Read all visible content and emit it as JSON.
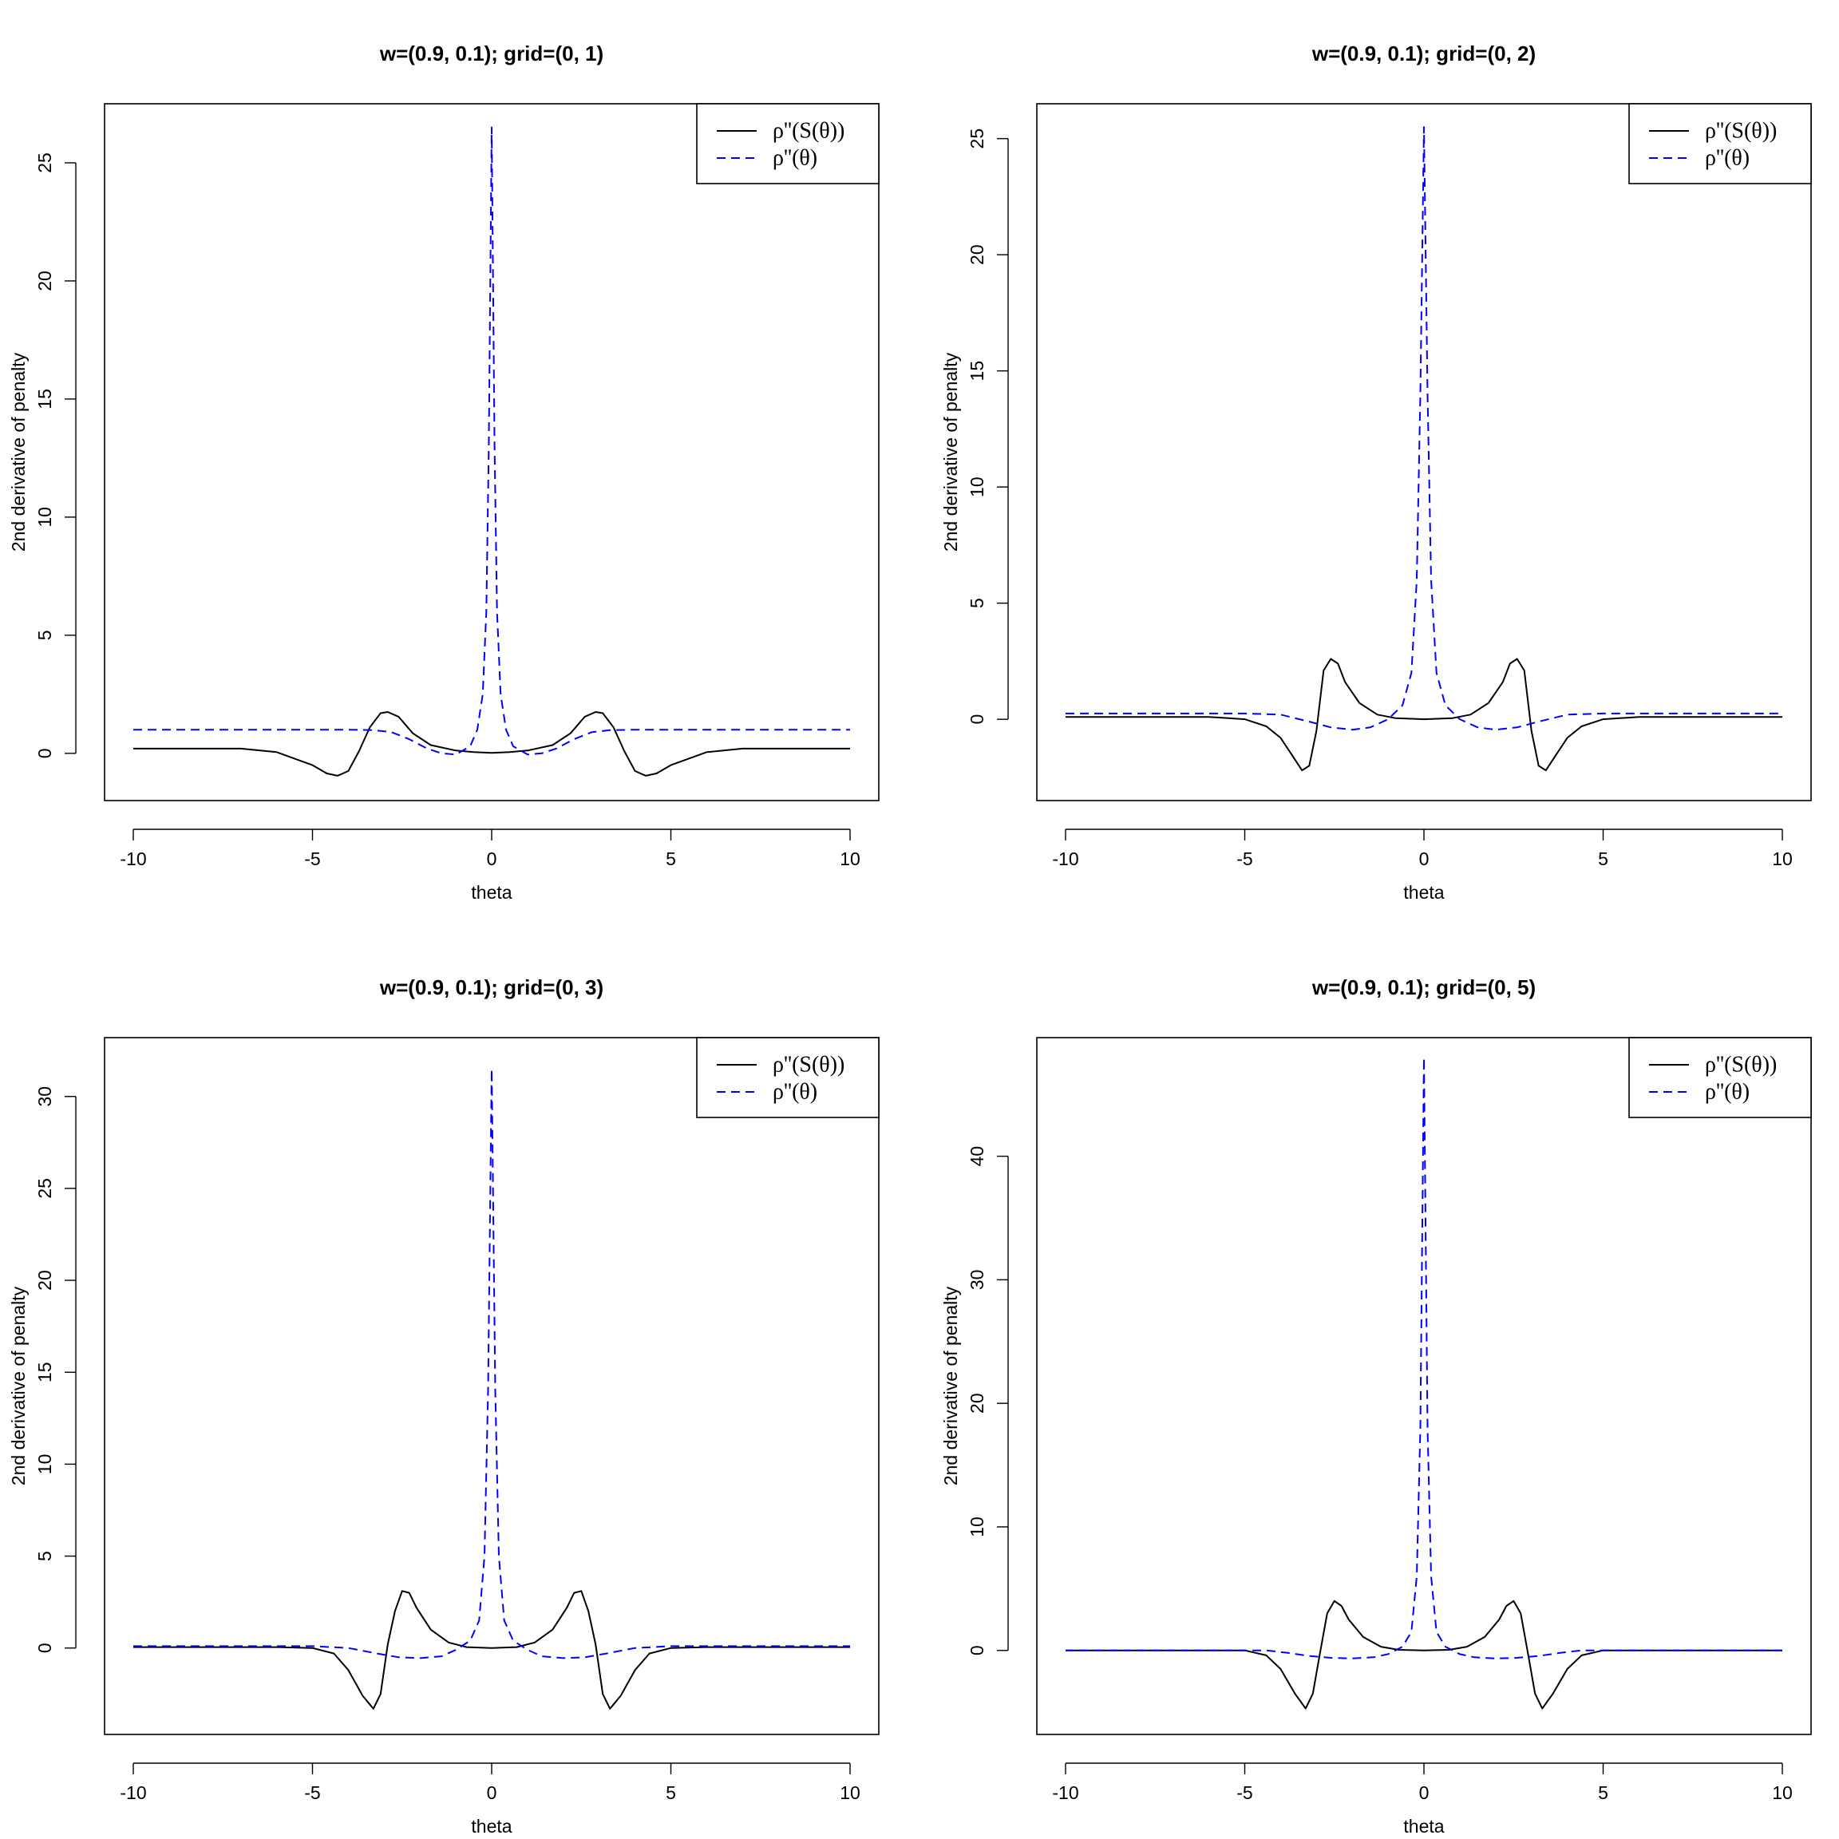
{
  "figure": {
    "layout": "2x2 panel grid",
    "colors": {
      "series_a": "#000000",
      "series_b": "#0000ff",
      "frame": "#000000",
      "background": "#ffffff"
    }
  },
  "chart_data": [
    {
      "type": "line",
      "title": "w=(0.9, 0.1); grid=(0, 1)",
      "xlabel": "theta",
      "ylabel": "2nd derivative of penalty",
      "xlim": [
        -10,
        10
      ],
      "ylim": [
        -2,
        27.5
      ],
      "xticks": [
        -10,
        -5,
        0,
        5,
        10
      ],
      "yticks": [
        0,
        5,
        10,
        15,
        20,
        25
      ],
      "legend_position": "top-right",
      "series": [
        {
          "name": "ρ''(S(θ))",
          "style": "solid",
          "color": "#000000",
          "x": [
            -10,
            -7,
            -6,
            -5,
            -4.6,
            -4.3,
            -4,
            -3.7,
            -3.4,
            -3.1,
            -2.9,
            -2.6,
            -2.2,
            -1.7,
            -1,
            -0.5,
            0,
            0.5,
            1,
            1.7,
            2.2,
            2.6,
            2.9,
            3.1,
            3.4,
            3.7,
            4,
            4.3,
            4.6,
            5,
            6,
            7,
            10
          ],
          "y": [
            0.2,
            0.2,
            0.05,
            -0.5,
            -0.85,
            -0.95,
            -0.75,
            0.1,
            1.1,
            1.7,
            1.75,
            1.55,
            0.85,
            0.35,
            0.12,
            0.05,
            0.02,
            0.05,
            0.12,
            0.35,
            0.85,
            1.55,
            1.75,
            1.7,
            1.1,
            0.1,
            -0.75,
            -0.95,
            -0.85,
            -0.5,
            0.05,
            0.2,
            0.2
          ]
        },
        {
          "name": "ρ''(θ)",
          "style": "dashed",
          "color": "#0000ff",
          "x": [
            -10,
            -5,
            -4,
            -3.3,
            -2.8,
            -2.3,
            -1.8,
            -1.4,
            -1,
            -0.6,
            -0.4,
            -0.25,
            -0.15,
            -0.08,
            0,
            0.08,
            0.15,
            0.25,
            0.4,
            0.6,
            1,
            1.4,
            1.8,
            2.3,
            2.8,
            3.3,
            4,
            5,
            10
          ],
          "y": [
            1,
            1,
            1,
            0.98,
            0.9,
            0.6,
            0.2,
            0,
            -0.05,
            0.3,
            1,
            2.5,
            6,
            13,
            26.5,
            13,
            6,
            2.5,
            1,
            0.3,
            -0.05,
            0,
            0.2,
            0.6,
            0.9,
            0.98,
            1,
            1,
            1
          ]
        }
      ]
    },
    {
      "type": "line",
      "title": "w=(0.9, 0.1); grid=(0, 2)",
      "xlabel": "theta",
      "ylabel": "2nd derivative of penalty",
      "xlim": [
        -10,
        10
      ],
      "ylim": [
        -3.5,
        26.5
      ],
      "xticks": [
        -10,
        -5,
        0,
        5,
        10
      ],
      "yticks": [
        0,
        5,
        10,
        15,
        20,
        25
      ],
      "legend_position": "top-right",
      "series": [
        {
          "name": "ρ''(S(θ))",
          "style": "solid",
          "color": "#000000",
          "x": [
            -10,
            -6,
            -5,
            -4.4,
            -4,
            -3.7,
            -3.4,
            -3.2,
            -3,
            -2.8,
            -2.6,
            -2.4,
            -2.2,
            -1.8,
            -1.3,
            -0.8,
            0,
            0.8,
            1.3,
            1.8,
            2.2,
            2.4,
            2.6,
            2.8,
            3,
            3.2,
            3.4,
            3.7,
            4,
            4.4,
            5,
            6,
            10
          ],
          "y": [
            0.1,
            0.1,
            0,
            -0.3,
            -0.8,
            -1.5,
            -2.2,
            -2,
            -0.5,
            2.1,
            2.6,
            2.4,
            1.6,
            0.7,
            0.2,
            0.05,
            0,
            0.05,
            0.2,
            0.7,
            1.6,
            2.4,
            2.6,
            2.1,
            -0.5,
            -2,
            -2.2,
            -1.5,
            -0.8,
            -0.3,
            0,
            0.1,
            0.1
          ]
        },
        {
          "name": "ρ''(θ)",
          "style": "dashed",
          "color": "#0000ff",
          "x": [
            -10,
            -5,
            -4,
            -3.2,
            -2.6,
            -2,
            -1.5,
            -1,
            -0.6,
            -0.35,
            -0.2,
            -0.1,
            0,
            0.1,
            0.2,
            0.35,
            0.6,
            1,
            1.5,
            2,
            2.6,
            3.2,
            4,
            5,
            10
          ],
          "y": [
            0.25,
            0.25,
            0.2,
            -0.1,
            -0.35,
            -0.45,
            -0.35,
            0,
            0.6,
            2,
            6,
            14,
            25.5,
            14,
            6,
            2,
            0.6,
            0,
            -0.35,
            -0.45,
            -0.35,
            -0.1,
            0.2,
            0.25,
            0.25
          ]
        }
      ]
    },
    {
      "type": "line",
      "title": "w=(0.9, 0.1); grid=(0, 3)",
      "xlabel": "theta",
      "ylabel": "2nd derivative of penalty",
      "xlim": [
        -10,
        10
      ],
      "ylim": [
        -4.7,
        33.2
      ],
      "xticks": [
        -10,
        -5,
        0,
        5,
        10
      ],
      "yticks": [
        0,
        5,
        10,
        15,
        20,
        25,
        30
      ],
      "legend_position": "top-right",
      "series": [
        {
          "name": "ρ''(S(θ))",
          "style": "solid",
          "color": "#000000",
          "x": [
            -10,
            -6,
            -5,
            -4.4,
            -4,
            -3.6,
            -3.3,
            -3.1,
            -2.9,
            -2.7,
            -2.5,
            -2.3,
            -2.1,
            -1.7,
            -1.2,
            -0.7,
            0,
            0.7,
            1.2,
            1.7,
            2.1,
            2.3,
            2.5,
            2.7,
            2.9,
            3.1,
            3.3,
            3.6,
            4,
            4.4,
            5,
            6,
            10
          ],
          "y": [
            0.05,
            0.05,
            0,
            -0.3,
            -1.2,
            -2.6,
            -3.3,
            -2.5,
            0.2,
            2,
            3.1,
            3,
            2.2,
            1,
            0.3,
            0.05,
            0,
            0.05,
            0.3,
            1,
            2.2,
            3,
            3.1,
            2,
            0.2,
            -2.5,
            -3.3,
            -2.6,
            -1.2,
            -0.3,
            0,
            0.05,
            0.05
          ]
        },
        {
          "name": "ρ''(θ)",
          "style": "dashed",
          "color": "#0000ff",
          "x": [
            -10,
            -5,
            -4,
            -3.2,
            -2.6,
            -2,
            -1.4,
            -1,
            -0.6,
            -0.35,
            -0.2,
            -0.1,
            0,
            0.1,
            0.2,
            0.35,
            0.6,
            1,
            1.4,
            2,
            2.6,
            3.2,
            4,
            5,
            10
          ],
          "y": [
            0.1,
            0.1,
            0,
            -0.3,
            -0.5,
            -0.55,
            -0.45,
            -0.1,
            0.4,
            1.5,
            5,
            14,
            31.5,
            14,
            5,
            1.5,
            0.4,
            -0.1,
            -0.45,
            -0.55,
            -0.5,
            -0.3,
            0,
            0.1,
            0.1
          ]
        }
      ]
    },
    {
      "type": "line",
      "title": "w=(0.9, 0.1); grid=(0, 5)",
      "xlabel": "theta",
      "ylabel": "2nd derivative of penalty",
      "xlim": [
        -10,
        10
      ],
      "ylim": [
        -6.8,
        49.6
      ],
      "xticks": [
        -10,
        -5,
        0,
        5,
        10
      ],
      "yticks": [
        0,
        10,
        20,
        30,
        40
      ],
      "legend_position": "top-right",
      "series": [
        {
          "name": "ρ''(S(θ))",
          "style": "solid",
          "color": "#000000",
          "x": [
            -10,
            -6,
            -5,
            -4.4,
            -4,
            -3.6,
            -3.3,
            -3.1,
            -2.9,
            -2.7,
            -2.5,
            -2.3,
            -2.1,
            -1.7,
            -1.2,
            -0.7,
            0,
            0.7,
            1.2,
            1.7,
            2.1,
            2.3,
            2.5,
            2.7,
            2.9,
            3.1,
            3.3,
            3.6,
            4,
            4.4,
            5,
            6,
            10
          ],
          "y": [
            0,
            0,
            0,
            -0.4,
            -1.5,
            -3.5,
            -4.7,
            -3.5,
            -0.2,
            3,
            4,
            3.6,
            2.5,
            1.1,
            0.3,
            0.05,
            0,
            0.05,
            0.3,
            1.1,
            2.5,
            3.6,
            4,
            3,
            -0.2,
            -3.5,
            -4.7,
            -3.5,
            -1.5,
            -0.4,
            0,
            0,
            0
          ]
        },
        {
          "name": "ρ''(θ)",
          "style": "dashed",
          "color": "#0000ff",
          "x": [
            -10,
            -5,
            -4.4,
            -3.8,
            -3.2,
            -2.6,
            -2,
            -1.4,
            -1,
            -0.6,
            -0.35,
            -0.2,
            -0.1,
            0,
            0.1,
            0.2,
            0.35,
            0.6,
            1,
            1.4,
            2,
            2.6,
            3.2,
            3.8,
            4.4,
            5,
            10
          ],
          "y": [
            0,
            0,
            0,
            -0.2,
            -0.45,
            -0.6,
            -0.65,
            -0.55,
            -0.3,
            0.3,
            1.5,
            6,
            18,
            48,
            18,
            6,
            1.5,
            0.3,
            -0.3,
            -0.55,
            -0.65,
            -0.6,
            -0.45,
            -0.2,
            0,
            0,
            0
          ]
        }
      ]
    }
  ]
}
